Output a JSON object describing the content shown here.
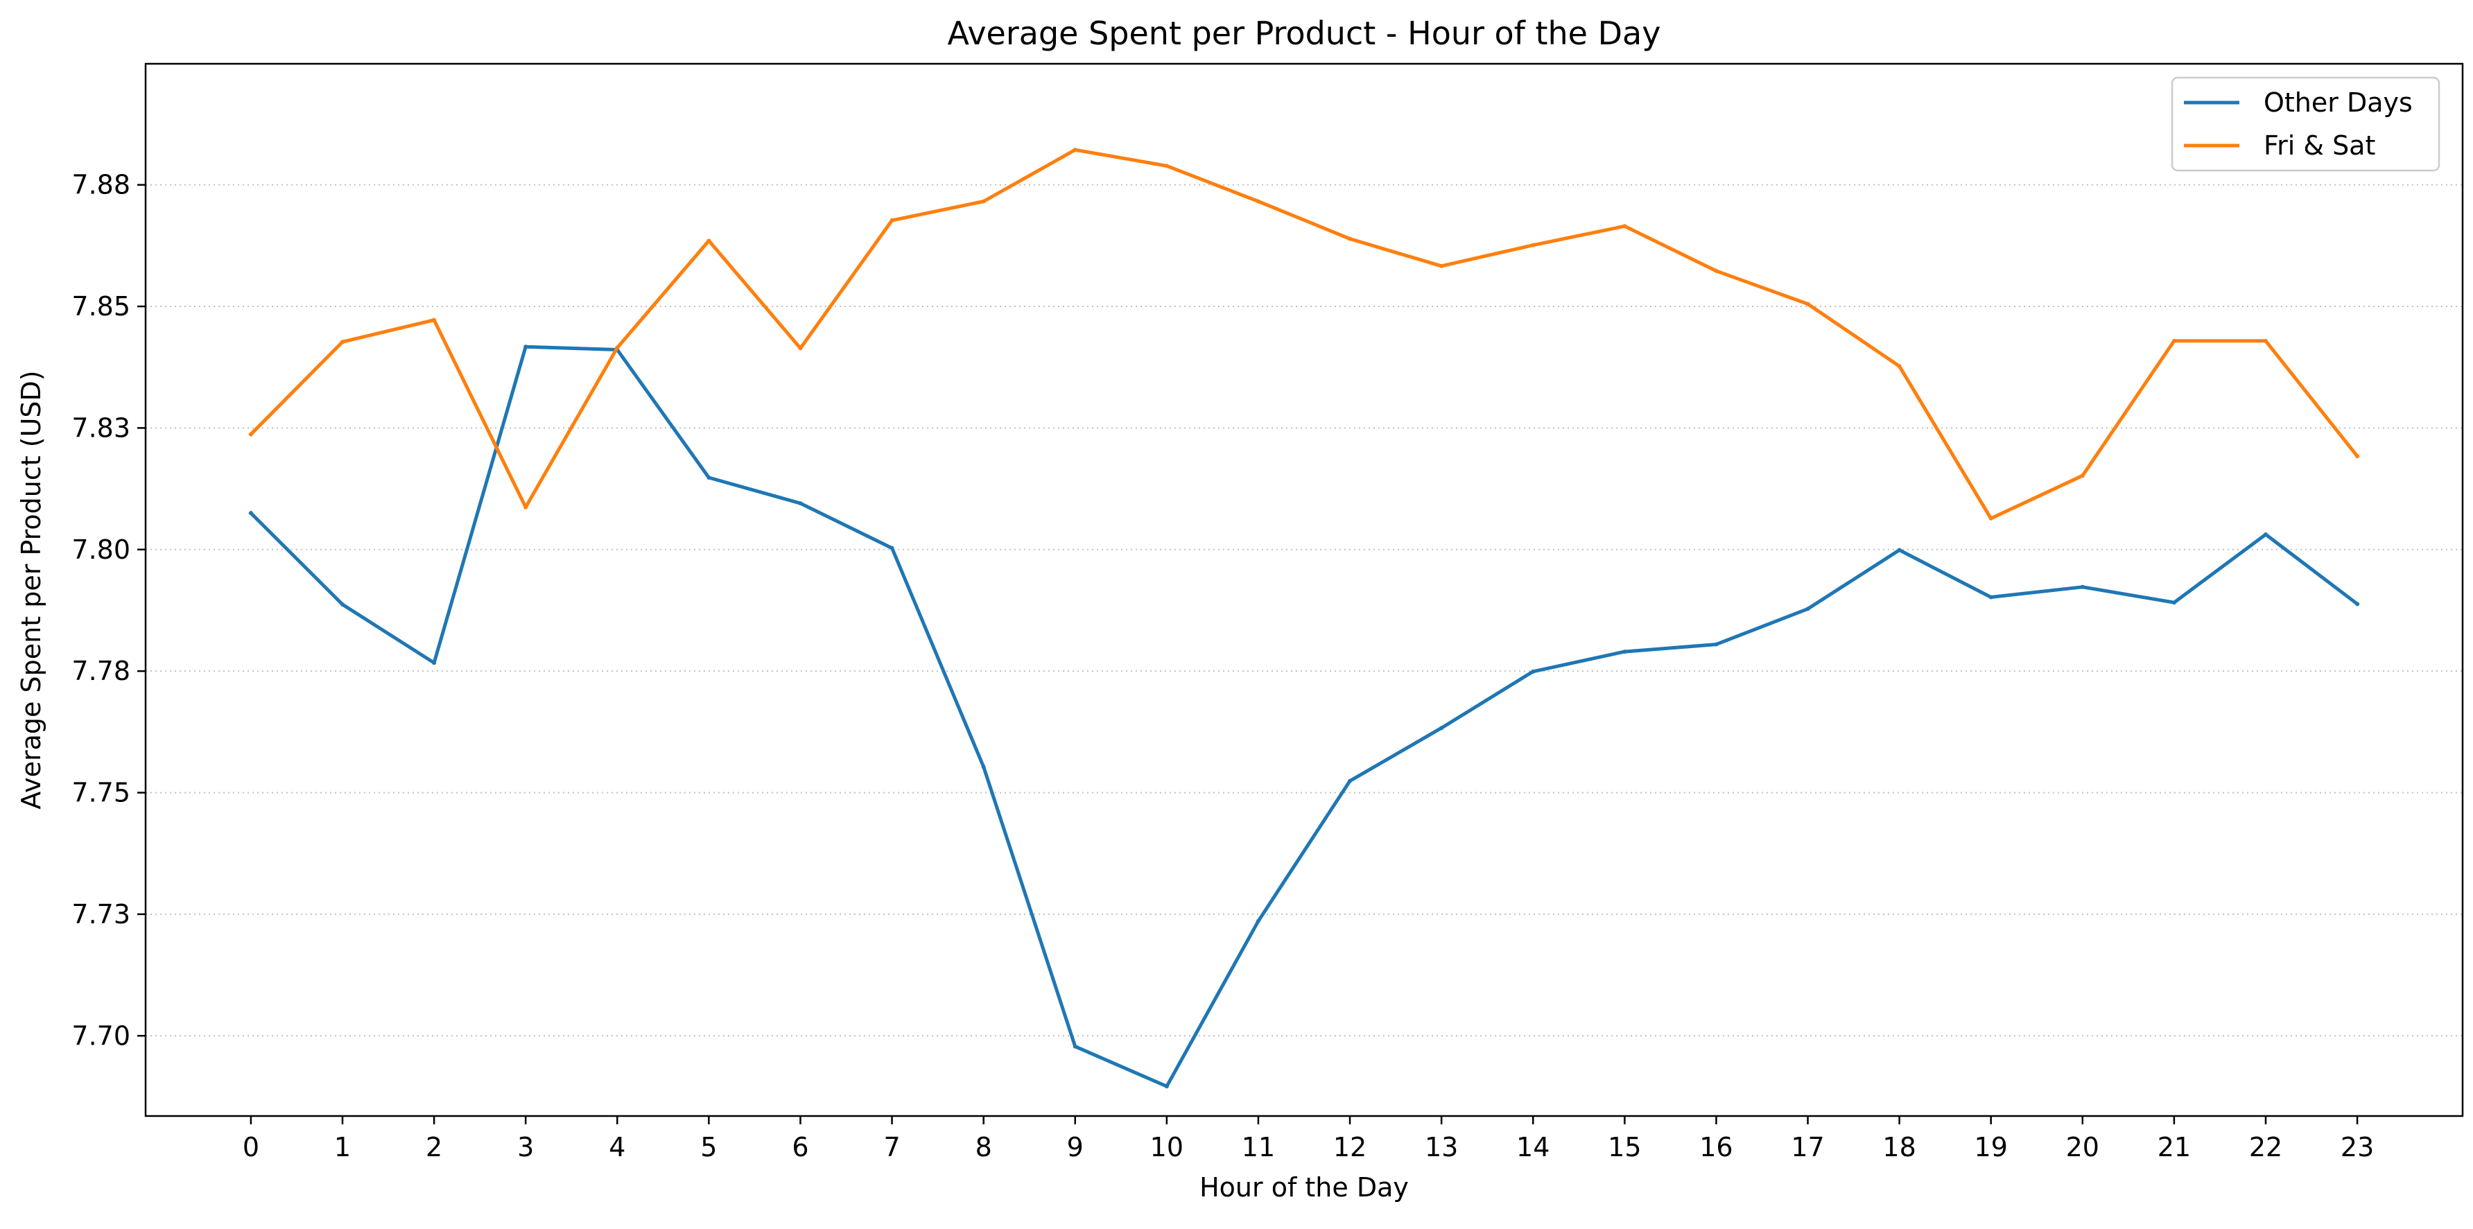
{
  "chart_data": {
    "type": "line",
    "title": "Average Spent per Product - Hour of the Day",
    "xlabel": "Hour of the Day",
    "ylabel": "Average Spent per Product (USD)",
    "x": [
      0,
      1,
      2,
      3,
      4,
      5,
      6,
      7,
      8,
      9,
      10,
      11,
      12,
      13,
      14,
      15,
      16,
      17,
      18,
      19,
      20,
      21,
      22,
      23
    ],
    "x_tick_labels": [
      "0",
      "1",
      "2",
      "3",
      "4",
      "5",
      "6",
      "7",
      "8",
      "9",
      "10",
      "11",
      "12",
      "13",
      "14",
      "15",
      "16",
      "17",
      "18",
      "19",
      "20",
      "21",
      "22",
      "23"
    ],
    "y_ticks": [
      7.7,
      7.725,
      7.75,
      7.775,
      7.8,
      7.825,
      7.85,
      7.875
    ],
    "y_tick_labels": [
      "7.70",
      "7.73",
      "7.75",
      "7.78",
      "7.80",
      "7.83",
      "7.85",
      "7.88"
    ],
    "xlim": [
      -1.15,
      24.15
    ],
    "ylim": [
      7.6835,
      7.8999
    ],
    "grid": {
      "y": true,
      "x": false,
      "style": "dotted"
    },
    "legend_position": "top-right",
    "series": [
      {
        "name": "Other Days",
        "color": "#1f77b4",
        "values": [
          7.8075,
          7.7887,
          7.7767,
          7.8417,
          7.8411,
          7.8148,
          7.8095,
          7.8003,
          7.7553,
          7.6978,
          7.6896,
          7.7236,
          7.7524,
          7.7633,
          7.7749,
          7.779,
          7.7805,
          7.7878,
          7.7999,
          7.7902,
          7.7923,
          7.7891,
          7.8031,
          7.7888
        ]
      },
      {
        "name": "Fri & Sat",
        "color": "#ff7f0e",
        "values": [
          7.8237,
          7.8427,
          7.8472,
          7.8087,
          7.8415,
          7.8635,
          7.8414,
          7.8677,
          7.8716,
          7.8822,
          7.8789,
          7.8716,
          7.8639,
          7.8583,
          7.8626,
          7.8665,
          7.8573,
          7.8505,
          7.8377,
          7.8064,
          7.8152,
          7.8429,
          7.8429,
          7.8192
        ]
      }
    ]
  }
}
